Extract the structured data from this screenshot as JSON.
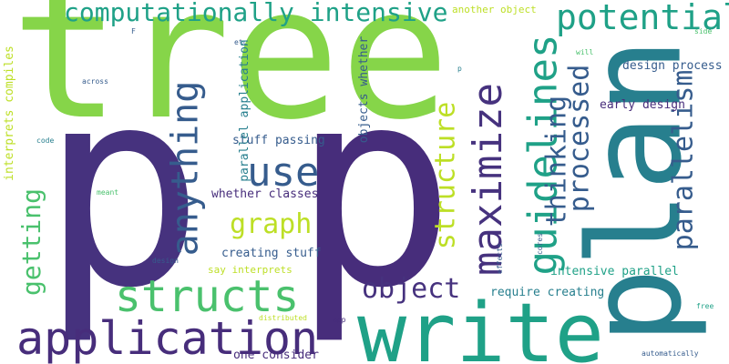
{
  "background": "#ffffff",
  "palette": {
    "deep_purple": "#46327e",
    "purple": "#472d7b",
    "blue": "#365c8d",
    "teal": "#277f8e",
    "green": "#1fa187",
    "light_green": "#4ac16d",
    "lime": "#86d549",
    "yellow": "#bddf26"
  },
  "words": [
    "p",
    "p",
    "tree",
    "plan",
    "write",
    "application",
    "structs",
    "maximize",
    "guidelines",
    "anything",
    "use",
    "potential",
    "computationally intensive",
    "parallelism",
    "processed",
    "thinking",
    "structure",
    "graph",
    "object",
    "getting",
    "design process",
    "early design",
    "stuff passing",
    "whether classes",
    "creating stuff",
    "say interprets",
    "intensive parallel",
    "require creating",
    "one consider",
    "another object",
    "parallel application",
    "objects whether",
    "interprets compiles",
    "distributed",
    "app",
    "free",
    "automatically",
    "code",
    "meant",
    "design",
    "across",
    "cores",
    "effects",
    "etc",
    "F",
    "side",
    "will",
    "p"
  ]
}
